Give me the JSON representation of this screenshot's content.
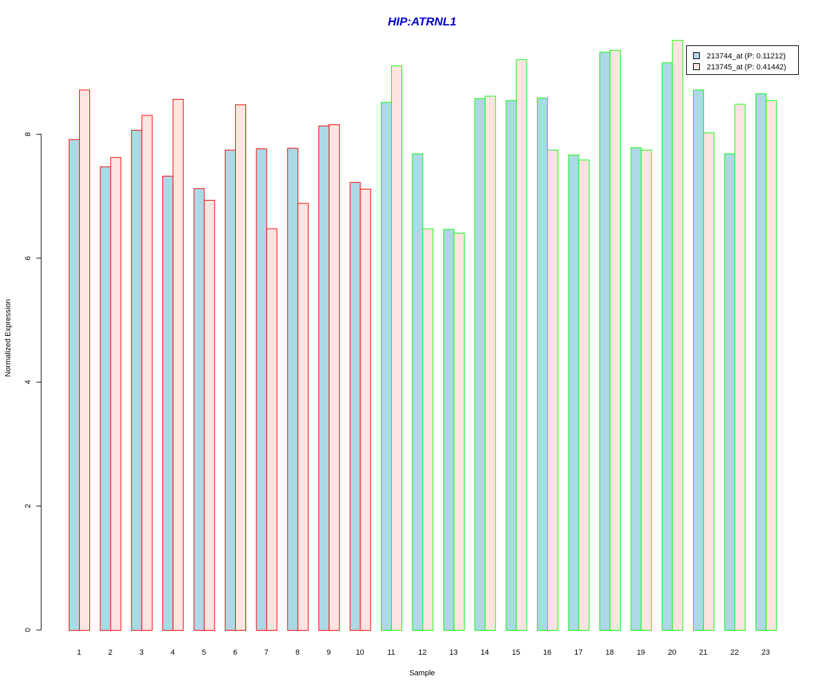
{
  "colors": {
    "title": "#0000cc",
    "series1_fill": "#add8e6",
    "series2_fill": "#ffe4e1",
    "group1_border": "#ff0000",
    "group2_border": "#00ff00"
  },
  "chart_data": {
    "type": "bar",
    "title": "HIP:ATRNL1",
    "xlabel": "Sample",
    "ylabel": "Normalized Expression",
    "ylim": [
      0,
      9.6
    ],
    "yticks": [
      "0",
      "2",
      "4",
      "6",
      "8"
    ],
    "grid": false,
    "legend_position": "top-right",
    "categories": [
      "1",
      "2",
      "3",
      "4",
      "5",
      "6",
      "7",
      "8",
      "9",
      "10",
      "11",
      "12",
      "13",
      "14",
      "15",
      "16",
      "17",
      "18",
      "19",
      "20",
      "21",
      "22",
      "23"
    ],
    "group_border": [
      "group1",
      "group1",
      "group1",
      "group1",
      "group1",
      "group1",
      "group1",
      "group1",
      "group1",
      "group1",
      "group2",
      "group2",
      "group2",
      "group2",
      "group2",
      "group2",
      "group2",
      "group2",
      "group2",
      "group2",
      "group2",
      "group2",
      "group2"
    ],
    "series": [
      {
        "name": "213744_at (P: 0.11212)",
        "values": [
          7.92,
          7.48,
          8.07,
          7.33,
          7.13,
          7.75,
          7.77,
          7.78,
          8.14,
          7.23,
          8.52,
          7.69,
          6.47,
          8.58,
          8.55,
          8.59,
          7.67,
          9.33,
          7.79,
          9.16,
          8.72,
          7.69,
          8.66
        ]
      },
      {
        "name": "213745_at (P: 0.41442)",
        "values": [
          8.72,
          7.63,
          8.31,
          8.57,
          6.94,
          8.48,
          6.48,
          6.89,
          8.16,
          7.12,
          9.11,
          6.48,
          6.41,
          8.62,
          9.21,
          7.75,
          7.59,
          9.36,
          7.75,
          9.52,
          8.03,
          8.49,
          8.55
        ]
      }
    ]
  }
}
